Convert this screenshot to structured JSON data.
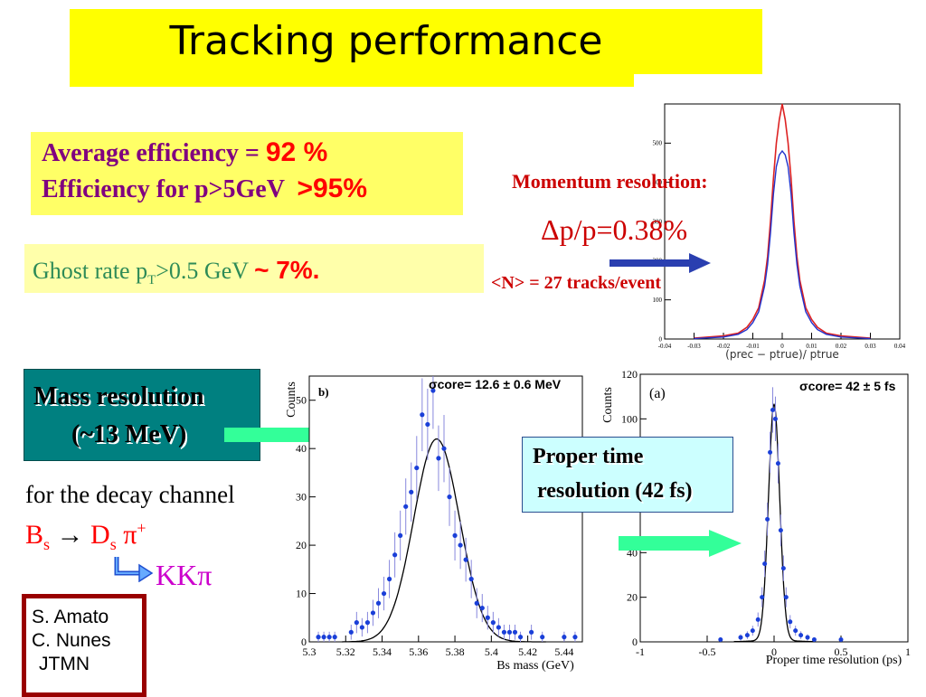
{
  "slide": {
    "title": "Tracking performance",
    "efficiency": {
      "line1_label": "Average efficiency = ",
      "line1_value": "92 %",
      "line2_label": "Efficiency for p>5GeV ",
      "line2_value": ">95%"
    },
    "ghost": {
      "label_pre": "Ghost rate p",
      "label_sub": "T",
      "label_post": ">0.5 GeV ",
      "value": "~ 7%."
    },
    "momentum": {
      "title": "Momentum resolution:",
      "value": "Δp/p=0.38%",
      "tracks": "<N> = 27 tracks/event"
    },
    "mass": {
      "line1": "Mass resolution",
      "line2": "(~13 MeV)"
    },
    "decay": {
      "intro": "for the decay channel",
      "b": "B",
      "b_sub": "s",
      "arrow": " → ",
      "d": "D",
      "d_sub": "s",
      "pi": " π",
      "pi_sup": "+",
      "kkpi": "KKπ"
    },
    "proper": {
      "line1": "Proper time",
      "line2": "resolution (42 fs)"
    },
    "authors": [
      "S. Amato",
      "C. Nunes",
      "JTMN"
    ],
    "colors": {
      "title_bg": "#ffff00",
      "efficiency_text": "#800080",
      "highlight_red": "#ff0000",
      "ghost_text": "#2e8b57",
      "mass_box": "#008080",
      "arrow_green": "#33ff99",
      "arrow_blue": "#2a3fb0",
      "kkpi": "#cc00cc"
    }
  },
  "chart_data": [
    {
      "type": "line",
      "name": "momentum-histogram",
      "xlabel": "(prec − ptrue)/ ptrue",
      "ylabel": "",
      "xlim": [
        -0.04,
        0.04
      ],
      "ylim": [
        0,
        600
      ],
      "x_ticks": [
        "-0.04",
        "-0.03",
        "-0.02",
        "-0.01",
        "0",
        "0.01",
        "0.02",
        "0.03",
        "0.04"
      ],
      "y_ticks": [
        "0",
        "100",
        "200",
        "300",
        "400",
        "500"
      ],
      "series": [
        {
          "color": "#dd2222",
          "x": [
            -0.03,
            -0.02,
            -0.015,
            -0.012,
            -0.01,
            -0.008,
            -0.006,
            -0.005,
            -0.004,
            -0.003,
            -0.002,
            -0.001,
            0,
            0.001,
            0.002,
            0.003,
            0.004,
            0.005,
            0.006,
            0.008,
            0.01,
            0.012,
            0.015,
            0.02,
            0.03
          ],
          "y": [
            2,
            8,
            15,
            30,
            50,
            80,
            150,
            210,
            300,
            410,
            500,
            560,
            620,
            560,
            500,
            410,
            300,
            210,
            150,
            80,
            50,
            30,
            15,
            8,
            2
          ]
        },
        {
          "color": "#2233cc",
          "x": [
            -0.03,
            -0.02,
            -0.015,
            -0.012,
            -0.01,
            -0.008,
            -0.006,
            -0.005,
            -0.004,
            -0.003,
            -0.002,
            -0.001,
            0,
            0.001,
            0.002,
            0.003,
            0.004,
            0.005,
            0.006,
            0.008,
            0.01,
            0.012,
            0.015,
            0.02,
            0.03
          ],
          "y": [
            1,
            5,
            12,
            24,
            42,
            70,
            135,
            190,
            270,
            370,
            440,
            470,
            480,
            470,
            440,
            370,
            270,
            190,
            135,
            70,
            42,
            24,
            12,
            5,
            1
          ]
        }
      ]
    },
    {
      "type": "scatter",
      "name": "bs-mass",
      "panel_label": "b)",
      "annotation": "σcore= 12.6 ± 0.6 MeV",
      "xlabel": "Bs mass (GeV)",
      "ylabel": "Counts",
      "xlim": [
        5.3,
        5.45
      ],
      "ylim": [
        0,
        55
      ],
      "x_ticks": [
        "5.3",
        "5.32",
        "5.34",
        "5.36",
        "5.38",
        "5.4",
        "5.42",
        "5.44"
      ],
      "y_ticks": [
        "0",
        "10",
        "20",
        "30",
        "40",
        "50"
      ],
      "x": [
        5.305,
        5.308,
        5.311,
        5.314,
        5.323,
        5.326,
        5.329,
        5.332,
        5.335,
        5.338,
        5.341,
        5.344,
        5.347,
        5.35,
        5.353,
        5.356,
        5.359,
        5.362,
        5.365,
        5.368,
        5.371,
        5.374,
        5.377,
        5.38,
        5.383,
        5.386,
        5.389,
        5.392,
        5.395,
        5.398,
        5.401,
        5.404,
        5.407,
        5.41,
        5.413,
        5.416,
        5.422,
        5.428,
        5.44,
        5.446
      ],
      "y": [
        1,
        1,
        1,
        1,
        2,
        4,
        3,
        4,
        6,
        8,
        10,
        13,
        18,
        22,
        28,
        31,
        36,
        47,
        45,
        52,
        38,
        40,
        30,
        22,
        20,
        17,
        13,
        8,
        7,
        5,
        4,
        3,
        2,
        2,
        2,
        1,
        2,
        1,
        1,
        1
      ],
      "fit": {
        "type": "gaussian",
        "mean": 5.37,
        "sigma": 0.0126,
        "amplitude": 42
      }
    },
    {
      "type": "scatter",
      "name": "proper-time",
      "panel_label": "(a)",
      "annotation": "σcore= 42 ± 5 fs",
      "xlabel": "Proper time resolution (ps)",
      "ylabel": "Counts",
      "xlim": [
        -1,
        1
      ],
      "ylim": [
        0,
        120
      ],
      "x_ticks": [
        "-1",
        "-0.5",
        "0",
        "0.5",
        "1"
      ],
      "y_ticks": [
        "0",
        "20",
        "40",
        "60",
        "80",
        "100",
        "120"
      ],
      "x": [
        -0.4,
        -0.25,
        -0.2,
        -0.16,
        -0.12,
        -0.09,
        -0.07,
        -0.05,
        -0.03,
        -0.01,
        0.01,
        0.03,
        0.05,
        0.07,
        0.09,
        0.12,
        0.16,
        0.2,
        0.25,
        0.3,
        0.5
      ],
      "y": [
        1,
        2,
        3,
        5,
        10,
        20,
        35,
        55,
        85,
        104,
        100,
        80,
        50,
        33,
        20,
        9,
        5,
        3,
        2,
        1,
        1
      ],
      "fit": {
        "type": "gaussian",
        "mean": 0,
        "sigma": 0.042,
        "amplitude": 105
      }
    }
  ]
}
